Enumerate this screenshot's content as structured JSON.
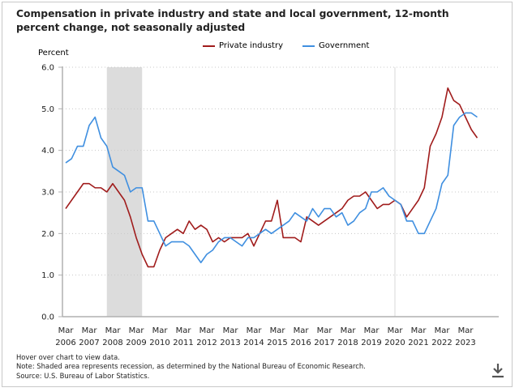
{
  "title": "Compensation in private industry and state and local government, 12-month percent change, not seasonally adjusted",
  "notes": [
    "Hover over chart to view data.",
    "Note: Shaded area represents recession, as determined by the National Bureau of Economic Research.",
    "Source: U.S. Bureau of Labor Statistics."
  ],
  "download_icon": "download-icon",
  "chart_data": {
    "type": "line",
    "title": "Compensation in private industry and state and local government, 12-month percent change, not seasonally adjusted",
    "ylabel": "Percent",
    "xlabel": "",
    "ylim": [
      0,
      6
    ],
    "yticks": [
      "0.0",
      "1.0",
      "2.0",
      "3.0",
      "4.0",
      "5.0",
      "6.0"
    ],
    "grid": true,
    "legend_position": "top-center",
    "xtick_labels": [
      [
        "Mar",
        "2006"
      ],
      [
        "Mar",
        "2007"
      ],
      [
        "Mar",
        "2008"
      ],
      [
        "Mar",
        "2009"
      ],
      [
        "Mar",
        "2010"
      ],
      [
        "Mar",
        "2011"
      ],
      [
        "Mar",
        "2012"
      ],
      [
        "Mar",
        "2013"
      ],
      [
        "Mar",
        "2014"
      ],
      [
        "Mar",
        "2015"
      ],
      [
        "Mar",
        "2016"
      ],
      [
        "Mar",
        "2017"
      ],
      [
        "Mar",
        "2018"
      ],
      [
        "Mar",
        "2019"
      ],
      [
        "Mar",
        "2020"
      ],
      [
        "Mar",
        "2021"
      ],
      [
        "Mar",
        "2022"
      ],
      [
        "Mar",
        "2023"
      ]
    ],
    "x_start": "Mar 2006",
    "x_end": "Sep 2023",
    "x_frequency": "quarterly",
    "recession_shading": {
      "start": "Dec 2007",
      "end": "Jun 2009",
      "color": "#dcdcdc"
    },
    "reference_line": "Mar 2020",
    "series": [
      {
        "name": "Private industry",
        "color": "#a01c1c",
        "values": [
          2.6,
          2.8,
          3.0,
          3.2,
          3.2,
          3.1,
          3.1,
          3.0,
          3.2,
          3.0,
          2.8,
          2.4,
          1.9,
          1.5,
          1.2,
          1.2,
          1.6,
          1.9,
          2.0,
          2.1,
          2.0,
          2.3,
          2.1,
          2.2,
          2.1,
          1.8,
          1.9,
          1.8,
          1.9,
          1.9,
          1.9,
          2.0,
          1.7,
          2.0,
          2.3,
          2.3,
          2.8,
          1.9,
          1.9,
          1.9,
          1.8,
          2.4,
          2.3,
          2.2,
          2.3,
          2.4,
          2.5,
          2.6,
          2.8,
          2.9,
          2.9,
          3.0,
          2.8,
          2.6,
          2.7,
          2.7,
          2.8,
          2.7,
          2.4,
          2.6,
          2.8,
          3.1,
          4.1,
          4.4,
          4.8,
          5.5,
          5.2,
          5.1,
          4.8,
          4.5,
          4.3
        ]
      },
      {
        "name": "Government",
        "color": "#3f8fe0",
        "values": [
          3.7,
          3.8,
          4.1,
          4.1,
          4.6,
          4.8,
          4.3,
          4.1,
          3.6,
          3.5,
          3.4,
          3.0,
          3.1,
          3.1,
          2.3,
          2.3,
          2.0,
          1.7,
          1.8,
          1.8,
          1.8,
          1.7,
          1.5,
          1.3,
          1.5,
          1.6,
          1.8,
          1.9,
          1.9,
          1.8,
          1.7,
          1.9,
          1.9,
          2.0,
          2.1,
          2.0,
          2.1,
          2.2,
          2.3,
          2.5,
          2.4,
          2.3,
          2.6,
          2.4,
          2.6,
          2.6,
          2.4,
          2.5,
          2.2,
          2.3,
          2.5,
          2.6,
          3.0,
          3.0,
          3.1,
          2.9,
          2.8,
          2.7,
          2.3,
          2.3,
          2.0,
          2.0,
          2.3,
          2.6,
          3.2,
          3.4,
          4.6,
          4.8,
          4.9,
          4.9,
          4.8
        ]
      }
    ]
  }
}
